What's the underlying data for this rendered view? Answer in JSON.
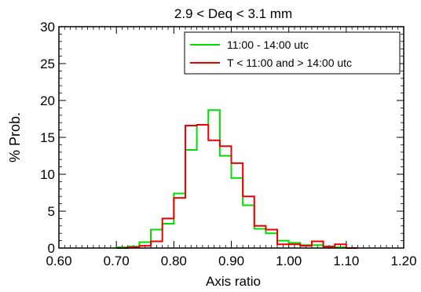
{
  "chart_data": {
    "type": "histogram",
    "title": "2.9 < Deq < 3.1 mm",
    "xlabel": "Axis ratio",
    "ylabel": "% Prob.",
    "xlim": [
      0.6,
      1.2
    ],
    "ylim": [
      0,
      30
    ],
    "xticks": [
      "0.60",
      "0.70",
      "0.80",
      "0.90",
      "1.00",
      "1.10",
      "1.20"
    ],
    "yticks": [
      "0",
      "5",
      "10",
      "15",
      "20",
      "25",
      "30"
    ],
    "grid": false,
    "legend_position": "top-right",
    "bin_edges": [
      0.7,
      0.72,
      0.74,
      0.76,
      0.78,
      0.8,
      0.82,
      0.84,
      0.86,
      0.88,
      0.9,
      0.92,
      0.94,
      0.96,
      0.98,
      1.0,
      1.02,
      1.04,
      1.06,
      1.08,
      1.1,
      1.12
    ],
    "series": [
      {
        "name": "11:00 - 14:00 utc",
        "color": "#00dd00",
        "values": [
          0.1,
          0.2,
          0.8,
          2.5,
          3.3,
          7.4,
          13.3,
          16.7,
          18.7,
          12.5,
          9.5,
          5.8,
          2.6,
          2.0,
          1.0,
          0.7,
          0.4,
          0.4,
          0.2,
          0.1,
          0.0
        ]
      },
      {
        "name": "T < 11:00 and > 14:00 utc",
        "color": "#ee0000",
        "values": [
          0.0,
          0.1,
          0.3,
          0.9,
          4.0,
          6.8,
          16.6,
          16.7,
          14.6,
          13.8,
          11.5,
          7.0,
          3.0,
          2.5,
          0.5,
          0.5,
          0.3,
          0.9,
          0.2,
          0.5,
          0.0
        ]
      }
    ]
  }
}
